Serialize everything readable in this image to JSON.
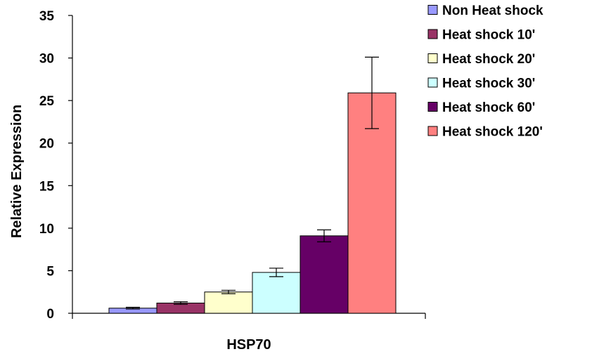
{
  "chart_data": {
    "type": "bar",
    "title": "",
    "xlabel": "HSP70",
    "ylabel": "Relative Expression",
    "categories": [
      "HSP70"
    ],
    "ylim": [
      0,
      35
    ],
    "yticks": [
      0,
      5,
      10,
      15,
      20,
      25,
      30,
      35
    ],
    "grid": false,
    "legend_position": "right",
    "series": [
      {
        "name": "Non Heat shock",
        "values": [
          0.6
        ],
        "error": [
          0.1
        ],
        "color": "#9999ff"
      },
      {
        "name": "Heat shock 10'",
        "values": [
          1.2
        ],
        "error": [
          0.15
        ],
        "color": "#993366"
      },
      {
        "name": "Heat shock 20'",
        "values": [
          2.5
        ],
        "error": [
          0.2
        ],
        "color": "#ffffcc"
      },
      {
        "name": "Heat shock 30'",
        "values": [
          4.8
        ],
        "error": [
          0.5
        ],
        "color": "#ccffff"
      },
      {
        "name": "Heat shock 60'",
        "values": [
          9.1
        ],
        "error": [
          0.7
        ],
        "color": "#660066"
      },
      {
        "name": "Heat shock 120'",
        "values": [
          25.9
        ],
        "error": [
          4.2
        ],
        "color": "#ff8080"
      }
    ]
  }
}
